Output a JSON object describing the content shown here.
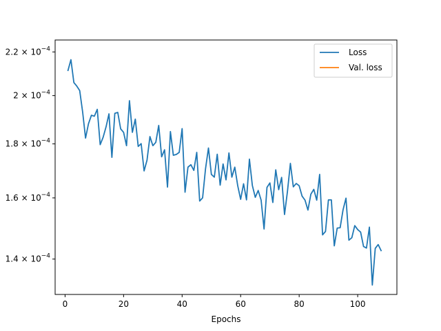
{
  "chart_data": {
    "type": "line",
    "title": "",
    "xlabel": "Epochs",
    "ylabel": "",
    "y_scale": "log",
    "xlim": [
      -3.4,
      113.4
    ],
    "ylim": [
      0.0001296,
      0.0002258
    ],
    "grid": false,
    "legend_position": "top-right",
    "x_ticks": [
      0,
      20,
      40,
      60,
      80,
      100
    ],
    "x_tick_labels": [
      "0",
      "20",
      "40",
      "60",
      "80",
      "100"
    ],
    "y_ticks": [
      0.00014,
      0.00016,
      0.00018,
      0.0002,
      0.00022
    ],
    "y_tick_labels": [
      {
        "mantissa": "1.4",
        "exponent": "−4"
      },
      {
        "mantissa": "1.6",
        "exponent": "−4"
      },
      {
        "mantissa": "1.8",
        "exponent": "−4"
      },
      {
        "mantissa": "2",
        "exponent": "−4"
      },
      {
        "mantissa": "2.2",
        "exponent": "−4"
      }
    ],
    "series": [
      {
        "name": "Loss",
        "color": "#1f77b4",
        "x": [
          1,
          2,
          3,
          4,
          5,
          6,
          7,
          8,
          9,
          10,
          11,
          12,
          13,
          14,
          15,
          16,
          17,
          18,
          19,
          20,
          21,
          22,
          23,
          24,
          25,
          26,
          27,
          28,
          29,
          30,
          31,
          32,
          33,
          34,
          35,
          36,
          37,
          38,
          39,
          40,
          41,
          42,
          43,
          44,
          45,
          46,
          47,
          48,
          49,
          50,
          51,
          52,
          53,
          54,
          55,
          56,
          57,
          58,
          59,
          60,
          61,
          62,
          63,
          64,
          65,
          66,
          67,
          68,
          69,
          70,
          71,
          72,
          73,
          74,
          75,
          76,
          77,
          78,
          79,
          80,
          81,
          82,
          83,
          84,
          85,
          86,
          87,
          88,
          89,
          90,
          91,
          92,
          93,
          94,
          95,
          96,
          97,
          98,
          99,
          100,
          101,
          102,
          103,
          104,
          105,
          106,
          107,
          108
        ],
        "values": [
          0.0002113,
          0.0002163,
          0.0002058,
          0.0002042,
          0.0002022,
          0.000193,
          0.0001823,
          0.0001881,
          0.0001916,
          0.0001912,
          0.0001941,
          0.0001797,
          0.0001826,
          0.0001868,
          0.0001922,
          0.0001748,
          0.0001924,
          0.0001928,
          0.000186,
          0.0001846,
          0.0001793,
          0.0001978,
          0.0001846,
          0.00019,
          0.000179,
          0.0001801,
          0.0001697,
          0.0001737,
          0.0001829,
          0.0001793,
          0.0001806,
          0.0001874,
          0.000175,
          0.0001777,
          0.0001638,
          0.0001849,
          0.0001756,
          0.0001759,
          0.0001767,
          0.0001861,
          0.000162,
          0.0001711,
          0.000172,
          0.0001699,
          0.0001767,
          0.0001589,
          0.00016,
          0.0001705,
          0.0001784,
          0.0001684,
          0.0001674,
          0.000176,
          0.0001645,
          0.0001723,
          0.0001664,
          0.0001765,
          0.0001674,
          0.0001711,
          0.0001643,
          0.0001595,
          0.000165,
          0.0001593,
          0.0001741,
          0.0001644,
          0.0001602,
          0.0001626,
          0.0001592,
          0.0001495,
          0.0001637,
          0.0001653,
          0.0001584,
          0.0001701,
          0.0001629,
          0.0001673,
          0.0001543,
          0.0001623,
          0.0001725,
          0.0001639,
          0.0001651,
          0.0001643,
          0.0001606,
          0.0001592,
          0.0001558,
          0.0001613,
          0.000163,
          0.0001592,
          0.0001684,
          0.0001476,
          0.0001487,
          0.0001593,
          0.0001593,
          0.0001441,
          0.0001498,
          0.0001499,
          0.0001559,
          0.0001599,
          0.0001459,
          0.0001467,
          0.0001506,
          0.0001493,
          0.0001485,
          0.0001439,
          0.0001434,
          0.0001501,
          0.0001323,
          0.0001433,
          0.0001445,
          0.0001426
        ]
      },
      {
        "name": "Val. loss",
        "color": "#ff7f0e",
        "x": [],
        "values": []
      }
    ]
  }
}
